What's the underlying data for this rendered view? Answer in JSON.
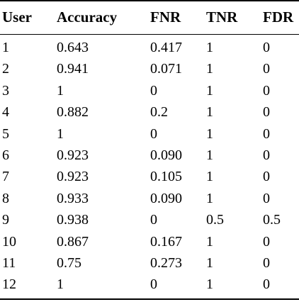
{
  "table": {
    "headers": {
      "user": "User",
      "accuracy": "Accuracy",
      "fnr": "FNR",
      "tnr": "TNR",
      "fdr": "FDR"
    },
    "rows": [
      {
        "user": "1",
        "accuracy": "0.643",
        "fnr": "0.417",
        "tnr": "1",
        "fdr": "0"
      },
      {
        "user": "2",
        "accuracy": "0.941",
        "fnr": "0.071",
        "tnr": "1",
        "fdr": "0"
      },
      {
        "user": "3",
        "accuracy": "1",
        "fnr": "0",
        "tnr": "1",
        "fdr": "0"
      },
      {
        "user": "4",
        "accuracy": "0.882",
        "fnr": "0.2",
        "tnr": "1",
        "fdr": "0"
      },
      {
        "user": "5",
        "accuracy": "1",
        "fnr": "0",
        "tnr": "1",
        "fdr": "0"
      },
      {
        "user": "6",
        "accuracy": "0.923",
        "fnr": "0.090",
        "tnr": "1",
        "fdr": "0"
      },
      {
        "user": "7",
        "accuracy": "0.923",
        "fnr": "0.105",
        "tnr": "1",
        "fdr": "0"
      },
      {
        "user": "8",
        "accuracy": "0.933",
        "fnr": "0.090",
        "tnr": "1",
        "fdr": "0"
      },
      {
        "user": "9",
        "accuracy": "0.938",
        "fnr": "0",
        "tnr": "0.5",
        "fdr": "0.5"
      },
      {
        "user": "10",
        "accuracy": "0.867",
        "fnr": "0.167",
        "tnr": "1",
        "fdr": "0"
      },
      {
        "user": "11",
        "accuracy": "0.75",
        "fnr": "0.273",
        "tnr": "1",
        "fdr": "0"
      },
      {
        "user": "12",
        "accuracy": "1",
        "fnr": "0",
        "tnr": "1",
        "fdr": "0"
      }
    ]
  }
}
